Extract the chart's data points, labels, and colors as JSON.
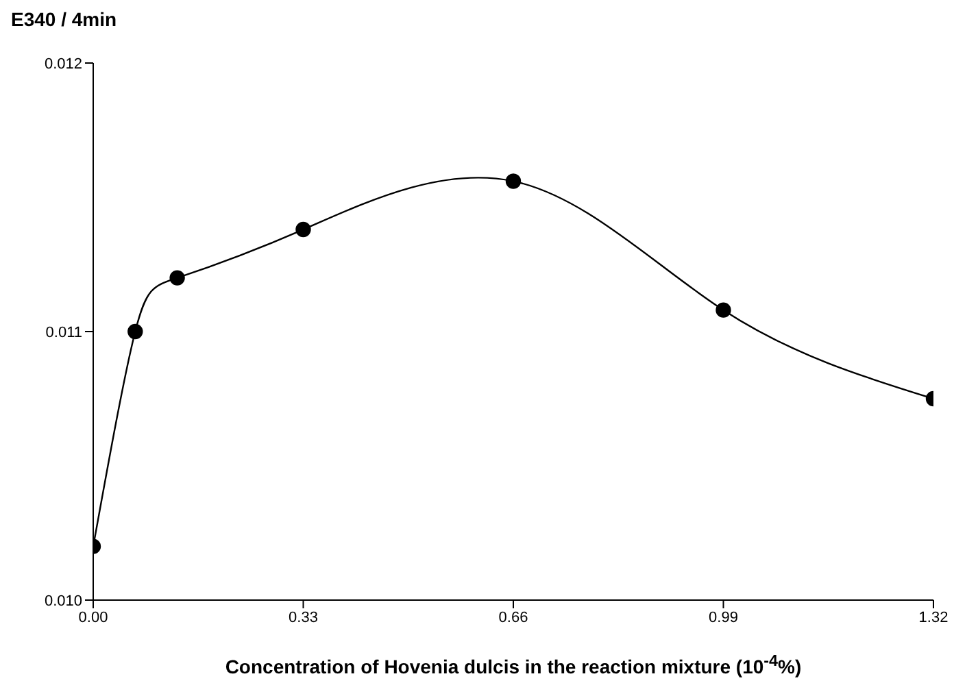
{
  "chart_data": {
    "type": "line",
    "ylabel": "E340 / 4min",
    "xlabel": "Concentration of Hovenia dulcis in the reaction mixture (10$^{-4}$%)",
    "x": [
      0,
      0.066,
      0.132,
      0.33,
      0.66,
      0.99,
      1.32
    ],
    "series": [
      {
        "color": "#000000",
        "values": [
          0.0102,
          0.011,
          0.0112,
          0.01138,
          0.01156,
          0.01108,
          0.01075
        ]
      }
    ],
    "xlim": [
      0,
      1.32
    ],
    "xticks": [
      {
        "value": 0,
        "label": "0.00"
      },
      {
        "value": 0.33,
        "label": "0.33"
      },
      {
        "value": 0.66,
        "label": "0.66"
      },
      {
        "value": 0.99,
        "label": "0.99"
      },
      {
        "value": 1.32,
        "label": "1.32"
      }
    ],
    "ylim": [
      0.01,
      0.012
    ],
    "yticks": [
      {
        "value": 0.01,
        "label": "0.010"
      },
      {
        "value": 0.011,
        "label": "0.011"
      },
      {
        "value": 0.012,
        "label": "0.012"
      }
    ],
    "grid": false,
    "legend": false,
    "marker": "circle",
    "line_style": "solid"
  }
}
